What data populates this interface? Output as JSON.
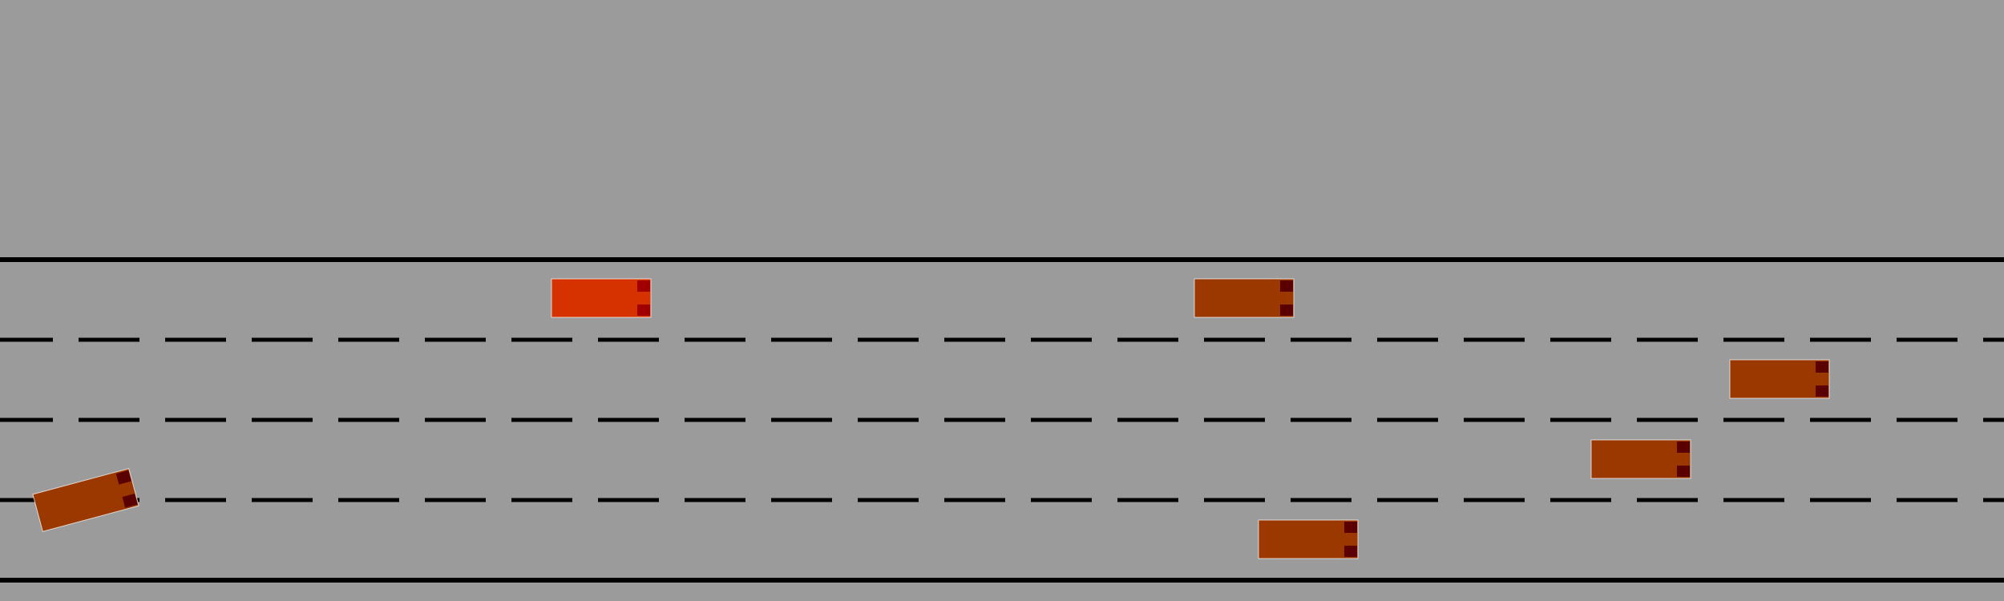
{
  "scene": {
    "type": "highway-lane-simulation",
    "lane_count": 4,
    "colors": {
      "background": "#9b9b9b",
      "road_edge": "#000000",
      "lane_marking": "#000000",
      "ego_vehicle": "#d63200",
      "other_vehicle": "#9a3800",
      "ego_light": "#a00000",
      "other_light": "#5a0000",
      "vehicle_outline": "#ffffff"
    }
  },
  "vehicles": [
    {
      "id": "ego",
      "role": "ego",
      "lane": 0,
      "heading": "right"
    },
    {
      "id": "car-1",
      "role": "other",
      "lane": 0,
      "heading": "right"
    },
    {
      "id": "car-2",
      "role": "other",
      "lane": 1,
      "heading": "right"
    },
    {
      "id": "car-3",
      "role": "other",
      "lane": 2,
      "heading": "right"
    },
    {
      "id": "car-4",
      "role": "other",
      "lane": 2,
      "heading": "right",
      "changing_lanes": true
    },
    {
      "id": "car-5",
      "role": "other",
      "lane": 3,
      "heading": "right"
    }
  ]
}
